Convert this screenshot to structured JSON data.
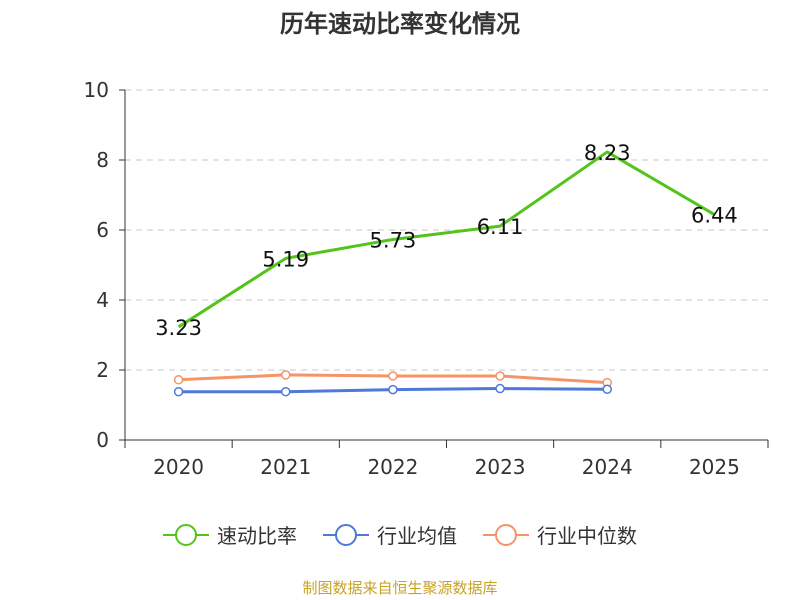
{
  "chart_data": {
    "type": "line",
    "title": "历年速动比率变化情况",
    "categories": [
      "2020",
      "2021",
      "2022",
      "2023",
      "2024",
      "2025"
    ],
    "ylim": [
      0,
      10
    ],
    "yticks": [
      0,
      2,
      4,
      6,
      8,
      10
    ],
    "grid": true,
    "legend_position": "bottom",
    "series": [
      {
        "name": "速动比率",
        "color": "#52c41a",
        "values": [
          3.23,
          5.19,
          5.73,
          6.11,
          8.23,
          6.44
        ],
        "show_labels": true,
        "show_markers": false
      },
      {
        "name": "行业均值",
        "color": "#4e79d8",
        "values": [
          1.38,
          1.38,
          1.44,
          1.47,
          1.45,
          null
        ],
        "show_labels": false,
        "show_markers": true
      },
      {
        "name": "行业中位数",
        "color": "#f59466",
        "values": [
          1.72,
          1.86,
          1.83,
          1.83,
          1.64,
          null
        ],
        "show_labels": false,
        "show_markers": true
      }
    ]
  },
  "source": "制图数据来自恒生聚源数据库"
}
